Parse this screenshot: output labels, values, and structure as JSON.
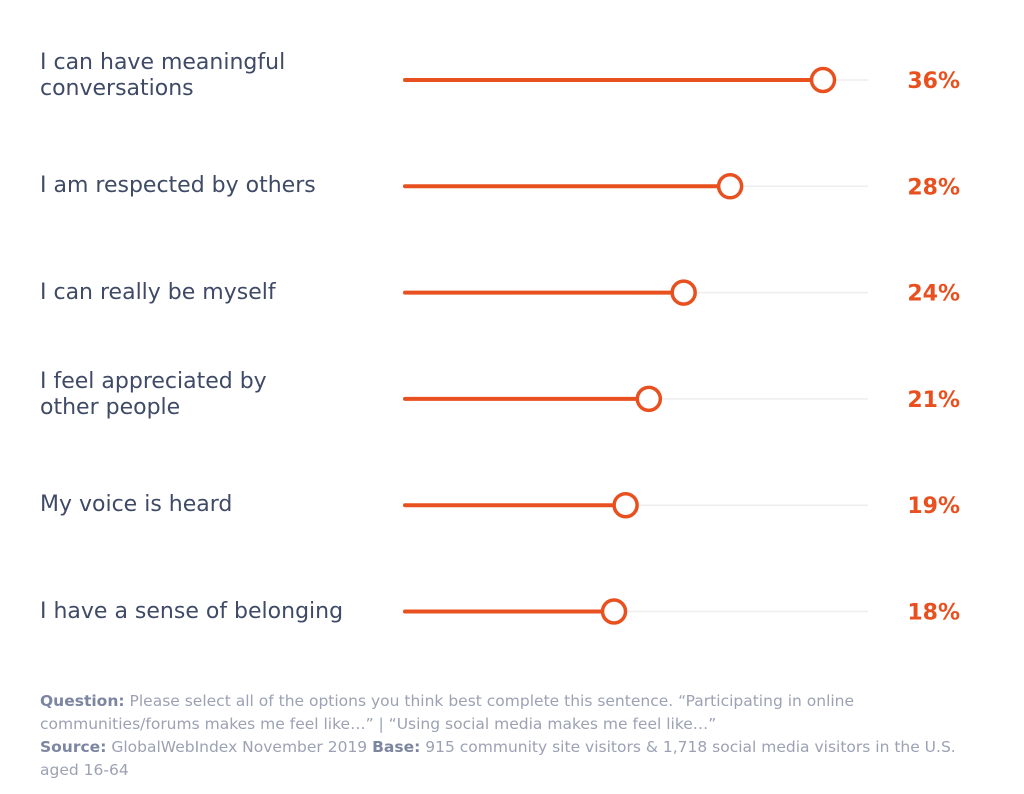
{
  "chart_data": {
    "type": "lollipop",
    "xlim": [
      0,
      40
    ],
    "categories": [
      "I can have meaningful\nconversations",
      "I am respected by others",
      "I can really be myself",
      "I feel appreciated by\nother people",
      "My voice is heard",
      "I have a sense of belonging"
    ],
    "values": [
      36,
      28,
      24,
      21,
      19,
      18
    ],
    "value_labels": [
      "36%",
      "28%",
      "24%",
      "21%",
      "19%",
      "18%"
    ],
    "unit": "%"
  },
  "colors": {
    "accent": "#e8501f",
    "track": "#eeeeee",
    "label_text": "#3f4a66",
    "footnote_text": "#9ba2b4",
    "footnote_bold": "#7c86a1"
  },
  "footnote": {
    "question_label": "Question:",
    "question_text": "Please select all of the options you think best complete this sentence. “Participating in online communities/forums makes me feel like…” | “Using social media makes me feel like…”",
    "source_label": "Source:",
    "source_text": "GlobalWebIndex November 2019",
    "base_label": "Base:",
    "base_text": "915 community site visitors & 1,718 social media visitors in the U.S. aged 16-64"
  }
}
